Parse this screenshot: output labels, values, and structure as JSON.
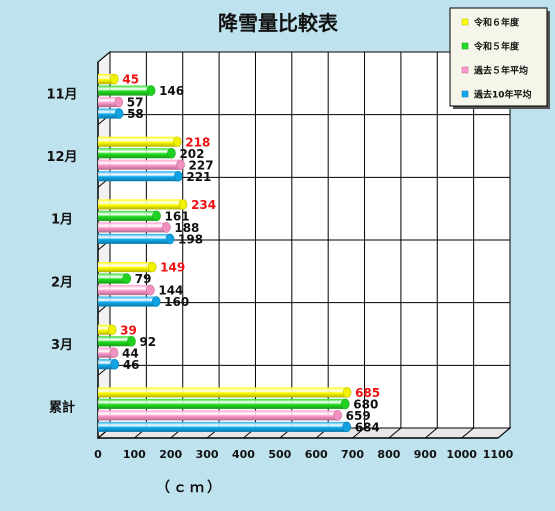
{
  "chart_data": {
    "type": "bar",
    "orientation": "horizontal",
    "title": "降雪量比較表",
    "xlabel": "（ｃｍ）",
    "ylabel": "",
    "categories": [
      "11月",
      "12月",
      "1月",
      "2月",
      "3月",
      "累計"
    ],
    "x_ticks": [
      "0",
      "100",
      "200",
      "300",
      "400",
      "500",
      "600",
      "700",
      "800",
      "900",
      "1000",
      "1100"
    ],
    "xlim": [
      0,
      1100
    ],
    "grid": true,
    "legend_position": "top-right",
    "series": [
      {
        "name": "令和６年度",
        "color": "#ffff00",
        "values": [
          45,
          218,
          234,
          149,
          39,
          685
        ]
      },
      {
        "name": "令和５年度",
        "color": "#22dd22",
        "values": [
          146,
          202,
          161,
          79,
          92,
          680
        ]
      },
      {
        "name": "過去５年平均",
        "color": "#ff99cc",
        "values": [
          57,
          227,
          188,
          144,
          44,
          659
        ]
      },
      {
        "name": "過去10年平均",
        "color": "#11aaee",
        "values": [
          58,
          221,
          198,
          160,
          46,
          684
        ]
      }
    ]
  }
}
